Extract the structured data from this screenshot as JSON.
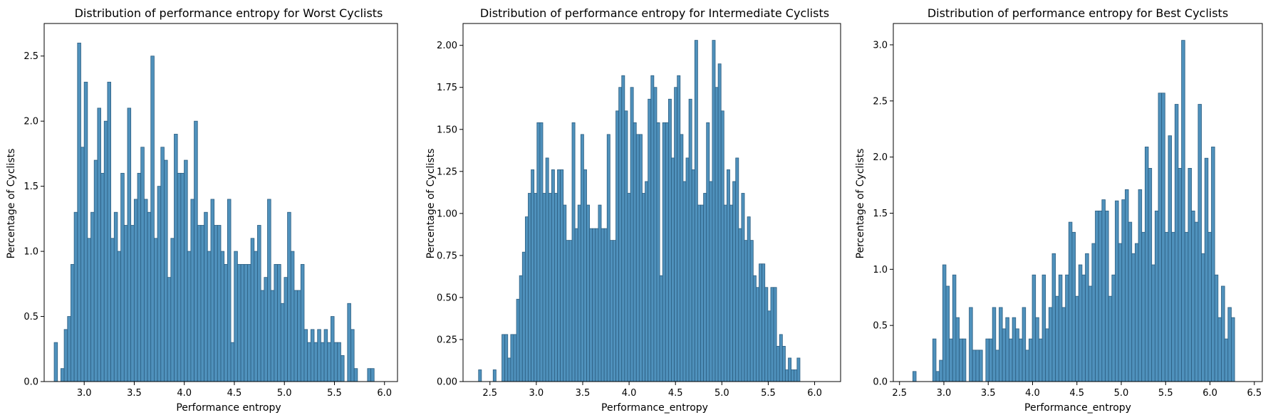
{
  "colors": {
    "bar_fill": "#4f91bc",
    "bar_edge": "#2b5d80",
    "background": "#ffffff"
  },
  "chart_data": [
    {
      "type": "bar",
      "title": "Distribution of performance entropy for Worst Cyclists",
      "xlabel": "Performance entropy",
      "ylabel": "Percentage of Cyclists",
      "xlim": [
        2.6,
        6.13
      ],
      "ylim": [
        0,
        2.75
      ],
      "xticks": [
        3.0,
        3.5,
        4.0,
        4.5,
        5.0,
        5.5,
        6.0
      ],
      "xtick_labels": [
        "3.0",
        "3.5",
        "4.0",
        "4.5",
        "5.0",
        "5.5",
        "6.0"
      ],
      "yticks": [
        0.0,
        0.5,
        1.0,
        1.5,
        2.0,
        2.5
      ],
      "ytick_labels": [
        "0.0",
        "0.5",
        "1.0",
        "1.5",
        "2.0",
        "2.5"
      ],
      "bin_start": 2.7,
      "bin_width": 0.0333,
      "values": [
        0.3,
        0,
        0.1,
        0.4,
        0.5,
        0.9,
        1.3,
        2.6,
        1.8,
        2.3,
        1.1,
        1.3,
        1.7,
        2.1,
        1.6,
        2.0,
        2.3,
        1.1,
        1.3,
        1.0,
        1.6,
        1.2,
        2.1,
        1.2,
        1.4,
        1.6,
        1.8,
        1.4,
        1.3,
        2.5,
        1.1,
        1.5,
        1.8,
        1.7,
        0.8,
        1.1,
        1.9,
        1.6,
        1.6,
        1.7,
        1.0,
        1.4,
        2.0,
        1.2,
        1.2,
        1.3,
        1.0,
        1.4,
        1.2,
        1.2,
        1.0,
        0.9,
        1.4,
        0.3,
        1.0,
        0.9,
        0.9,
        0.9,
        0.9,
        1.1,
        1.0,
        1.2,
        0.7,
        0.8,
        1.4,
        0.7,
        0.9,
        0.9,
        0.6,
        0.8,
        1.3,
        1.0,
        0.7,
        0.7,
        0.9,
        0.4,
        0.3,
        0.4,
        0.3,
        0.4,
        0.3,
        0.4,
        0.3,
        0.5,
        0.3,
        0.3,
        0.2,
        0,
        0.6,
        0.4,
        0.1,
        0,
        0,
        0,
        0.1,
        0.1
      ]
    },
    {
      "type": "bar",
      "title": "Distribution of performance entropy for Intermediate Cyclists",
      "xlabel": "Performance_entropy",
      "ylabel": "Percentage of Cyclists",
      "xlim": [
        2.21,
        6.28
      ],
      "ylim": [
        0,
        2.13
      ],
      "xticks": [
        2.5,
        3.0,
        3.5,
        4.0,
        4.5,
        5.0,
        5.5,
        6.0
      ],
      "xtick_labels": [
        "2.5",
        "3.0",
        "3.5",
        "4.0",
        "4.5",
        "5.0",
        "5.5",
        "6.0"
      ],
      "yticks": [
        0.0,
        0.25,
        0.5,
        0.75,
        1.0,
        1.25,
        1.5,
        1.75,
        2.0
      ],
      "ytick_labels": [
        "0.00",
        "0.25",
        "0.50",
        "0.75",
        "1.00",
        "1.25",
        "1.50",
        "1.75",
        "2.00"
      ],
      "bin_start": 2.377,
      "bin_width": 0.0315,
      "values": [
        0.07,
        0,
        0,
        0,
        0,
        0.07,
        0,
        0,
        0.28,
        0.28,
        0.14,
        0.28,
        0.28,
        0.49,
        0.63,
        0.77,
        0.98,
        1.12,
        1.26,
        1.12,
        1.54,
        1.54,
        1.12,
        1.33,
        1.12,
        1.26,
        1.12,
        1.26,
        1.26,
        1.05,
        0.84,
        0.84,
        1.54,
        0.91,
        1.05,
        1.47,
        1.26,
        1.05,
        0.91,
        0.91,
        0.91,
        1.05,
        0.91,
        0.91,
        1.47,
        0.84,
        0.84,
        1.61,
        1.75,
        1.82,
        1.61,
        1.12,
        1.75,
        1.54,
        1.47,
        1.47,
        1.12,
        1.19,
        1.68,
        1.82,
        1.75,
        1.54,
        0.63,
        1.54,
        1.54,
        1.68,
        1.33,
        1.75,
        1.82,
        1.47,
        1.19,
        1.33,
        1.68,
        1.26,
        2.03,
        1.05,
        1.05,
        1.12,
        1.54,
        1.19,
        2.03,
        1.75,
        1.89,
        1.61,
        1.05,
        1.26,
        1.05,
        1.19,
        1.33,
        0.91,
        1.12,
        0.84,
        0.98,
        0.84,
        0.63,
        0.56,
        0.7,
        0.7,
        0.56,
        0.42,
        0.56,
        0.56,
        0.21,
        0.28,
        0.21,
        0.07,
        0.14,
        0.07,
        0.07,
        0.14
      ]
    },
    {
      "type": "bar",
      "title": "Distribution of performance entropy for Best Cyclists",
      "xlabel": "Performance_entropy",
      "ylabel": "Percentage of Cyclists",
      "xlim": [
        2.43,
        6.59
      ],
      "ylim": [
        0,
        3.19
      ],
      "xticks": [
        2.5,
        3.0,
        3.5,
        4.0,
        4.5,
        5.0,
        5.5,
        6.0,
        6.5
      ],
      "xtick_labels": [
        "2.5",
        "3.0",
        "3.5",
        "4.0",
        "4.5",
        "5.0",
        "5.5",
        "6.0",
        "6.5"
      ],
      "yticks": [
        0.0,
        0.5,
        1.0,
        1.5,
        2.0,
        2.5,
        3.0
      ],
      "ytick_labels": [
        "0.0",
        "0.5",
        "1.0",
        "1.5",
        "2.0",
        "2.5",
        "3.0"
      ],
      "bin_start": 2.65,
      "bin_width": 0.0374,
      "values": [
        0.09,
        0,
        0,
        0,
        0,
        0,
        0.38,
        0.09,
        0.19,
        1.04,
        0.85,
        0.38,
        0.95,
        0.57,
        0.38,
        0.38,
        0,
        0.66,
        0.28,
        0.28,
        0.28,
        0,
        0.38,
        0.38,
        0.66,
        0.28,
        0.66,
        0.47,
        0.57,
        0.38,
        0.57,
        0.47,
        0.38,
        0.66,
        0.28,
        0.38,
        0.95,
        0.57,
        0.38,
        0.95,
        0.47,
        0.66,
        1.14,
        0.76,
        0.95,
        0.66,
        0.95,
        1.42,
        1.33,
        0.76,
        1.04,
        0.95,
        1.14,
        0.85,
        1.23,
        1.52,
        1.52,
        1.62,
        1.52,
        0.76,
        0.95,
        1.61,
        1.23,
        1.62,
        1.71,
        1.42,
        1.14,
        1.23,
        1.71,
        1.33,
        2.09,
        1.9,
        1.04,
        1.52,
        2.57,
        2.57,
        1.33,
        2.19,
        1.33,
        2.47,
        1.9,
        3.04,
        1.33,
        1.9,
        1.52,
        1.42,
        2.47,
        1.14,
        1.99,
        1.33,
        2.09,
        0.95,
        0.57,
        0.85,
        0.38,
        0.66,
        0.57
      ]
    }
  ]
}
